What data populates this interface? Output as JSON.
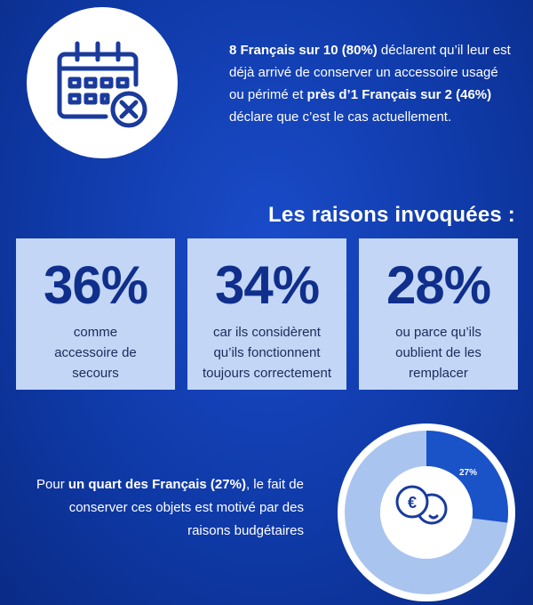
{
  "intro": {
    "part1_bold": "8 Français sur 10 (80%)",
    "part2": " déclarent qu’il leur est déjà arrivé de conserver un accessoire usagé ou périmé et ",
    "part3_bold": "près d’1 Français sur 2 (46%)",
    "part4": " déclare que c’est le cas actuellement."
  },
  "reasons": {
    "title": "Les raisons invoquées :",
    "items": [
      {
        "percent": "36%",
        "desc": "comme accessoire de secours"
      },
      {
        "percent": "34%",
        "desc": "car ils considèrent qu’ils fonctionnent toujours correctement"
      },
      {
        "percent": "28%",
        "desc": "ou parce qu’ils oublient de les remplacer"
      }
    ]
  },
  "budget": {
    "text1": "Pour ",
    "text2_bold": "un quart des Français (27%)",
    "text3": ", le fait de conserver ces objets est motivé par des raisons budgétaires",
    "donut_label": "27%",
    "donut_value": 27
  },
  "colors": {
    "background": "#0f3aa8",
    "card": "#c3d6f6",
    "percent_text": "#102f8c",
    "donut_accent": "#1a52c8",
    "donut_track": "#a9c4ee"
  },
  "icons": {
    "calendar": "calendar-cancel-icon",
    "coin": "euro-coin-icon"
  }
}
